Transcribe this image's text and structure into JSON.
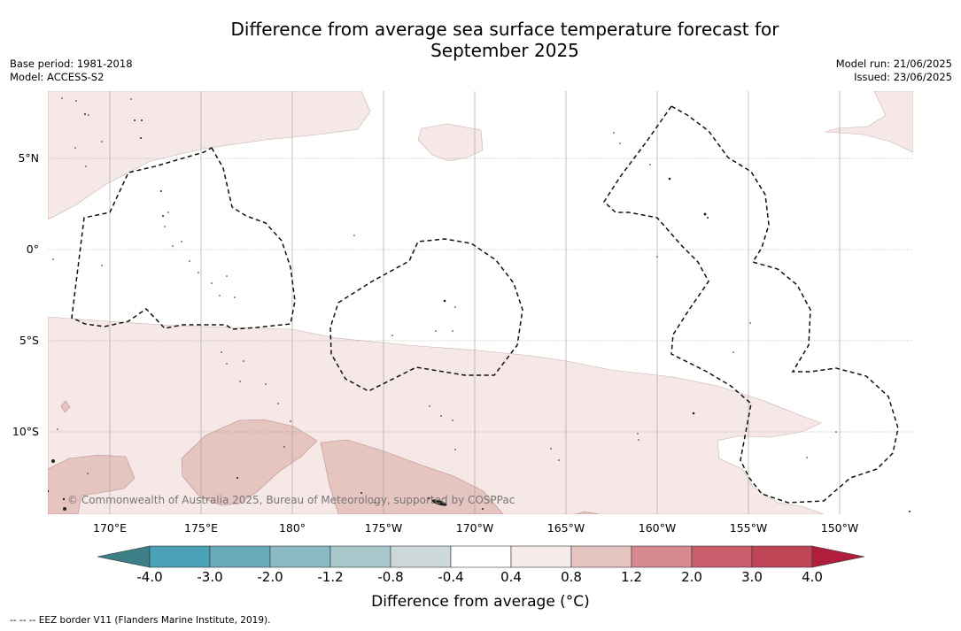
{
  "title_line1": "Difference from average sea surface temperature forecast for",
  "title_line2": "September 2025",
  "base_period": "Base period: 1981-2018",
  "model": "Model: ACCESS-S2",
  "model_run": "Model run: 21/06/2025",
  "issued": "Issued: 23/06/2025",
  "lat_labels": [
    "5°N",
    "0°",
    "5°S",
    "10°S"
  ],
  "lon_labels": [
    "170°E",
    "175°E",
    "180°",
    "175°W",
    "170°W",
    "165°W",
    "160°W",
    "155°W",
    "150°W"
  ],
  "copyright": "© Commonwealth of Australia 2025, Bureau of Meteorology, supported by COSPPac",
  "colorbar": {
    "ticks": [
      "-4.0",
      "-3.0",
      "-2.0",
      "-1.2",
      "-0.8",
      "-0.4",
      "0.4",
      "0.8",
      "1.2",
      "2.0",
      "3.0",
      "4.0"
    ],
    "colors": [
      "#3d7f87",
      "#4aa0b4",
      "#6aaabb",
      "#8ab8c4",
      "#a8c8cc",
      "#ccd8d9",
      "#ffffff",
      "#f6ebea",
      "#e6c5c1",
      "#d6898f",
      "#c85e6b",
      "#c04557",
      "#b01e3c"
    ],
    "label": "Difference from average (°C)"
  },
  "footnote": "--  --  -- EEZ border V11 (Flanders Marine Institute, 2019)."
}
